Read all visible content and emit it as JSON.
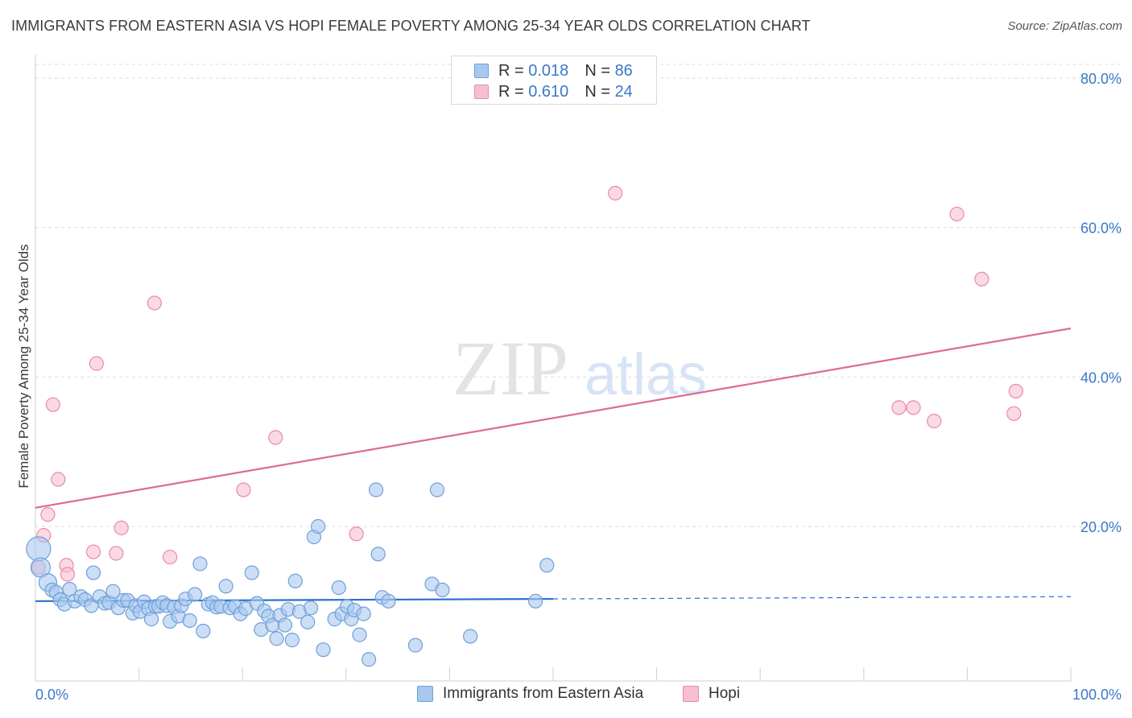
{
  "title": "IMMIGRANTS FROM EASTERN ASIA VS HOPI FEMALE POVERTY AMONG 25-34 YEAR OLDS CORRELATION CHART",
  "source": "Source: ZipAtlas.com",
  "watermark": {
    "zip": "ZIP",
    "atlas": "atlas"
  },
  "colors": {
    "blue_fill": "#a8c8ee",
    "blue_stroke": "#6f9fd8",
    "blue_line": "#2a6fd0",
    "pink_fill": "#f7bfd0",
    "pink_stroke": "#e98aa8",
    "pink_line": "#e06a93",
    "axis_text": "#3a78c9",
    "grid": "#dddddd"
  },
  "legend": {
    "series": [
      {
        "r_label": "R =",
        "r_value": "0.018",
        "n_label": "N =",
        "n_value": "86"
      },
      {
        "r_label": "R =",
        "r_value": "0.610",
        "n_label": "N =",
        "n_value": "24"
      }
    ]
  },
  "bottom_legend": {
    "blue": "Immigrants from Eastern Asia",
    "pink": "Hopi"
  },
  "chart_data": {
    "type": "scatter",
    "title": "IMMIGRANTS FROM EASTERN ASIA VS HOPI FEMALE POVERTY AMONG 25-34 YEAR OLDS CORRELATION CHART",
    "xlabel": "",
    "ylabel": "Female Poverty Among 25-34 Year Olds",
    "xlim": [
      0,
      100
    ],
    "ylim": [
      0,
      85
    ],
    "x_ticks": [
      "0.0%",
      "100.0%"
    ],
    "y_ticks": [
      {
        "value": 20,
        "label": "20.0%"
      },
      {
        "value": 40,
        "label": "40.0%"
      },
      {
        "value": 60,
        "label": "60.0%"
      },
      {
        "value": 80,
        "label": "80.0%"
      }
    ],
    "grid": true,
    "series": [
      {
        "name": "Immigrants from Eastern Asia",
        "color": "#a8c8ee",
        "points": [
          [
            0.3,
            17.0
          ],
          [
            0.5,
            14.5
          ],
          [
            1.2,
            12.5
          ],
          [
            1.6,
            11.5
          ],
          [
            2.0,
            11.2
          ],
          [
            2.4,
            10.2
          ],
          [
            2.8,
            9.6
          ],
          [
            3.3,
            11.6
          ],
          [
            3.8,
            10.0
          ],
          [
            4.4,
            10.6
          ],
          [
            4.8,
            10.2
          ],
          [
            5.4,
            9.4
          ],
          [
            5.6,
            13.8
          ],
          [
            6.2,
            10.6
          ],
          [
            6.7,
            9.7
          ],
          [
            7.1,
            9.8
          ],
          [
            7.5,
            11.3
          ],
          [
            8.0,
            9.1
          ],
          [
            8.5,
            10.1
          ],
          [
            8.9,
            10.1
          ],
          [
            9.4,
            8.4
          ],
          [
            9.7,
            9.4
          ],
          [
            10.1,
            8.6
          ],
          [
            10.5,
            9.9
          ],
          [
            10.9,
            9.0
          ],
          [
            11.2,
            7.6
          ],
          [
            11.6,
            9.3
          ],
          [
            11.9,
            9.3
          ],
          [
            12.3,
            9.8
          ],
          [
            12.7,
            9.4
          ],
          [
            13.0,
            7.3
          ],
          [
            13.4,
            9.2
          ],
          [
            13.8,
            8.0
          ],
          [
            14.1,
            9.4
          ],
          [
            14.5,
            10.3
          ],
          [
            14.9,
            7.4
          ],
          [
            15.4,
            10.9
          ],
          [
            15.9,
            15.0
          ],
          [
            16.2,
            6.0
          ],
          [
            16.7,
            9.6
          ],
          [
            17.1,
            9.8
          ],
          [
            17.5,
            9.2
          ],
          [
            17.9,
            9.3
          ],
          [
            18.4,
            12.0
          ],
          [
            18.8,
            9.1
          ],
          [
            19.3,
            9.3
          ],
          [
            19.8,
            8.3
          ],
          [
            20.3,
            9.0
          ],
          [
            20.9,
            13.8
          ],
          [
            21.4,
            9.7
          ],
          [
            21.8,
            6.2
          ],
          [
            22.1,
            8.7
          ],
          [
            22.5,
            8.0
          ],
          [
            22.9,
            6.8
          ],
          [
            23.3,
            5.0
          ],
          [
            23.6,
            8.1
          ],
          [
            24.1,
            6.8
          ],
          [
            24.4,
            8.9
          ],
          [
            24.8,
            4.8
          ],
          [
            25.1,
            12.7
          ],
          [
            25.5,
            8.6
          ],
          [
            26.3,
            7.2
          ],
          [
            26.6,
            9.1
          ],
          [
            26.9,
            18.6
          ],
          [
            27.3,
            20.0
          ],
          [
            27.8,
            3.5
          ],
          [
            28.9,
            7.6
          ],
          [
            29.3,
            11.8
          ],
          [
            29.6,
            8.3
          ],
          [
            30.1,
            9.3
          ],
          [
            30.5,
            7.6
          ],
          [
            30.8,
            8.8
          ],
          [
            31.3,
            5.5
          ],
          [
            31.7,
            8.3
          ],
          [
            32.2,
            2.2
          ],
          [
            32.9,
            24.9
          ],
          [
            33.1,
            16.3
          ],
          [
            33.5,
            10.5
          ],
          [
            34.1,
            10.0
          ],
          [
            36.7,
            4.1
          ],
          [
            38.3,
            12.3
          ],
          [
            39.3,
            11.5
          ],
          [
            38.8,
            24.9
          ],
          [
            42.0,
            5.3
          ],
          [
            48.3,
            10.0
          ],
          [
            49.4,
            14.8
          ]
        ],
        "trend": {
          "x": [
            0,
            50,
            100
          ],
          "y": [
            10.0,
            10.3,
            10.6
          ],
          "solid_to": 50
        }
      },
      {
        "name": "Hopi",
        "color": "#f7bfd0",
        "points": [
          [
            0.3,
            14.5
          ],
          [
            0.8,
            18.8
          ],
          [
            1.2,
            21.6
          ],
          [
            1.7,
            36.3
          ],
          [
            2.2,
            26.3
          ],
          [
            3.0,
            14.8
          ],
          [
            3.1,
            13.6
          ],
          [
            5.6,
            16.6
          ],
          [
            5.9,
            41.8
          ],
          [
            7.8,
            16.4
          ],
          [
            8.3,
            19.8
          ],
          [
            11.5,
            49.9
          ],
          [
            13.0,
            15.9
          ],
          [
            20.1,
            24.9
          ],
          [
            23.2,
            31.9
          ],
          [
            31.0,
            19.0
          ],
          [
            56.0,
            64.6
          ],
          [
            83.4,
            35.9
          ],
          [
            84.8,
            35.9
          ],
          [
            86.8,
            34.1
          ],
          [
            89.0,
            61.8
          ],
          [
            91.4,
            53.1
          ],
          [
            94.5,
            35.1
          ],
          [
            94.7,
            38.1
          ]
        ],
        "trend": {
          "x": [
            0,
            100
          ],
          "y": [
            22.5,
            46.5
          ],
          "solid_to": 100
        }
      }
    ]
  }
}
